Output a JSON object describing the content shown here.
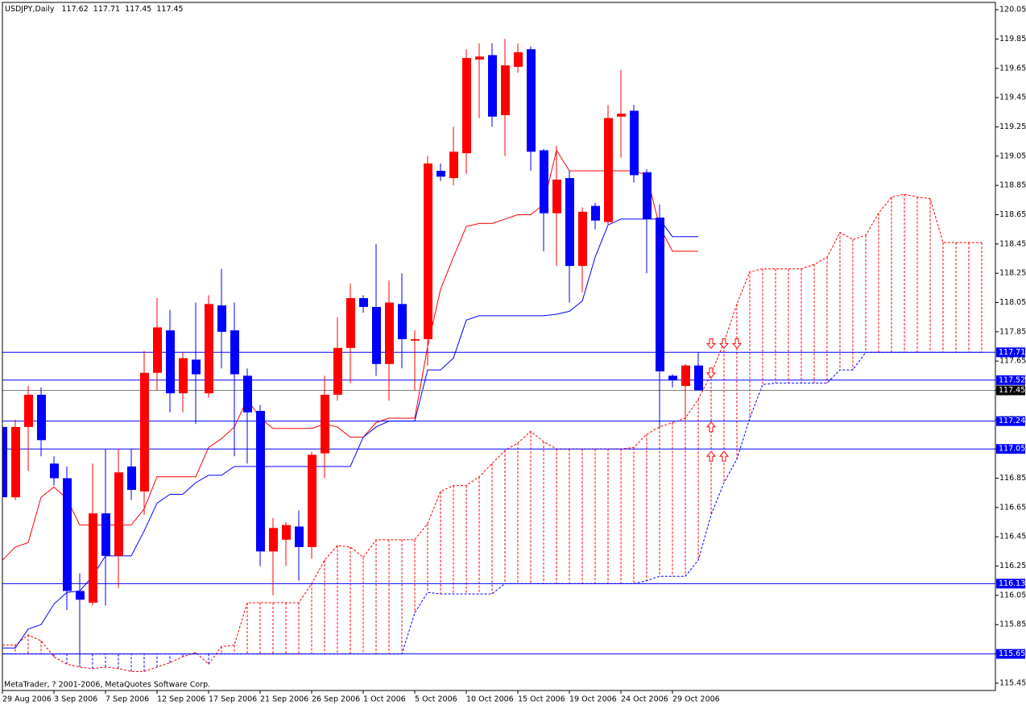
{
  "chart_data": {
    "type": "candlestick",
    "title": "USDJPY,Daily",
    "footer": "MetaTrader, ? 2001-2006, MetaQuotes Software Corp.",
    "categories": [
      "29 Aug 2006",
      null,
      null,
      null,
      "3 Sep 2006",
      null,
      null,
      null,
      "7 Sep 2006",
      null,
      null,
      null,
      "12 Sep 2006",
      null,
      null,
      null,
      "17 Sep 2006",
      null,
      null,
      null,
      "21 Sep 2006",
      null,
      null,
      null,
      "26 Sep 2006",
      null,
      null,
      null,
      "1 Oct 2006",
      null,
      null,
      null,
      "5 Oct 2006",
      null,
      null,
      null,
      "10 Oct 2006",
      null,
      null,
      null,
      "15 Oct 2006",
      null,
      null,
      null,
      "19 Oct 2006",
      null,
      null,
      null,
      "24 Oct 2006",
      null,
      null,
      null,
      "29 Oct 2006",
      null,
      null
    ],
    "open": [
      117.2,
      116.72,
      117.2,
      117.42,
      116.95,
      116.85,
      116.08,
      116.0,
      116.61,
      116.32,
      116.93,
      116.76,
      117.57,
      117.86,
      117.43,
      117.66,
      117.43,
      118.03,
      117.86,
      117.55,
      117.31,
      116.35,
      116.43,
      116.52,
      116.38,
      117.02,
      117.42,
      117.74,
      118.08,
      118.02,
      117.63,
      118.04,
      117.79,
      117.8,
      118.95,
      118.9,
      119.07,
      119.71,
      119.74,
      119.33,
      119.66,
      119.78,
      119.09,
      118.66,
      118.9,
      118.3,
      118.71,
      118.6,
      119.32,
      119.36,
      118.94,
      118.63,
      117.55,
      117.48,
      117.62
    ],
    "high": [
      117.35,
      117.25,
      117.48,
      117.47,
      117.0,
      116.93,
      116.2,
      116.95,
      117.05,
      117.05,
      117.05,
      117.72,
      118.08,
      118.0,
      117.71,
      118.05,
      118.1,
      118.28,
      118.05,
      117.6,
      117.35,
      116.58,
      116.55,
      116.63,
      117.03,
      117.55,
      117.95,
      118.18,
      118.1,
      118.45,
      118.2,
      118.25,
      117.86,
      119.05,
      119.0,
      119.25,
      119.78,
      119.82,
      119.82,
      119.85,
      119.82,
      119.8,
      119.1,
      119.12,
      118.95,
      118.7,
      118.73,
      119.4,
      119.64,
      119.4,
      118.96,
      118.72,
      117.56,
      117.63,
      117.71
    ],
    "low": [
      116.45,
      116.7,
      116.9,
      117.0,
      116.8,
      115.95,
      115.58,
      115.98,
      115.98,
      116.1,
      116.7,
      116.6,
      117.45,
      117.3,
      117.3,
      117.22,
      117.4,
      117.6,
      117.0,
      116.95,
      116.25,
      116.05,
      116.25,
      116.15,
      116.3,
      116.85,
      117.38,
      117.5,
      117.98,
      117.55,
      117.38,
      117.6,
      117.45,
      117.62,
      118.88,
      118.85,
      118.93,
      119.31,
      119.25,
      119.05,
      119.62,
      118.95,
      118.4,
      118.3,
      118.05,
      118.12,
      118.55,
      118.58,
      119.04,
      118.87,
      118.25,
      117.2,
      117.47,
      117.24,
      117.45
    ],
    "close": [
      116.72,
      117.2,
      117.42,
      117.11,
      116.85,
      116.08,
      116.02,
      116.61,
      116.32,
      116.89,
      116.77,
      117.57,
      117.88,
      117.43,
      117.67,
      117.56,
      118.04,
      117.85,
      117.56,
      117.3,
      116.35,
      116.51,
      116.53,
      116.38,
      117.01,
      117.42,
      117.74,
      118.08,
      118.02,
      117.63,
      118.05,
      117.8,
      117.8,
      119.0,
      118.91,
      119.08,
      119.72,
      119.73,
      119.32,
      119.67,
      119.76,
      119.08,
      118.66,
      118.89,
      118.3,
      118.67,
      118.61,
      119.31,
      119.34,
      118.92,
      118.62,
      117.58,
      117.52,
      117.62,
      117.45
    ],
    "up_color": "#ff0000",
    "down_color": "#0000ff",
    "tenkan": {
      "color": "#ff0000",
      "values": [
        116.29,
        116.38,
        116.41,
        116.72,
        116.79,
        116.71,
        116.53,
        116.53,
        116.53,
        116.53,
        116.53,
        116.64,
        116.86,
        116.86,
        116.86,
        116.86,
        117.06,
        117.12,
        117.2,
        117.39,
        117.26,
        117.19,
        117.19,
        117.19,
        117.19,
        117.22,
        117.2,
        117.13,
        117.13,
        117.23,
        117.26,
        117.26,
        117.26,
        117.75,
        118.14,
        118.36,
        118.57,
        118.59,
        118.59,
        118.62,
        118.65,
        118.65,
        118.72,
        119.09,
        118.95,
        118.95,
        118.95,
        118.95,
        118.95,
        118.95,
        118.92,
        118.57,
        118.4,
        118.4,
        118.4
      ]
    },
    "kijun": {
      "color": "#0000ff",
      "values": [
        115.69,
        115.69,
        115.82,
        115.85,
        115.99,
        116.07,
        116.08,
        116.18,
        116.32,
        116.32,
        116.32,
        116.49,
        116.68,
        116.74,
        116.74,
        116.82,
        116.87,
        116.87,
        116.93,
        116.93,
        116.93,
        116.93,
        116.93,
        116.93,
        116.93,
        116.93,
        116.93,
        116.93,
        117.13,
        117.2,
        117.24,
        117.24,
        117.24,
        117.59,
        117.59,
        117.67,
        117.93,
        117.96,
        117.96,
        117.96,
        117.96,
        117.96,
        117.96,
        117.97,
        117.99,
        118.06,
        118.36,
        118.58,
        118.62,
        118.62,
        118.62,
        118.62,
        118.5,
        118.5,
        118.5
      ]
    },
    "span_a": {
      "color": "#ff0000",
      "values": [
        115.71,
        115.71,
        115.78,
        115.74,
        115.63,
        115.58,
        115.56,
        115.55,
        115.56,
        115.55,
        115.53,
        115.53,
        115.56,
        115.59,
        115.63,
        115.66,
        115.58,
        115.7,
        115.71,
        116.0,
        116.0,
        116.0,
        116.0,
        116.0,
        116.13,
        116.29,
        116.39,
        116.38,
        116.31,
        116.43,
        116.43,
        116.43,
        116.43,
        116.54,
        116.76,
        116.8,
        116.8,
        116.86,
        116.95,
        117.04,
        117.09,
        117.17,
        117.1,
        117.05,
        117.05,
        117.05,
        117.05,
        117.05,
        117.05,
        117.06,
        117.15,
        117.2,
        117.23,
        117.26,
        117.39,
        117.56,
        117.78,
        118.04,
        118.26,
        118.28,
        118.28,
        118.28,
        118.28,
        118.31,
        118.36,
        118.53,
        118.48,
        118.51,
        118.66,
        118.77,
        118.79,
        118.77,
        118.76,
        118.46,
        118.46,
        118.46,
        118.46
      ]
    },
    "span_b": {
      "color": "#0000ff",
      "values": [
        115.65,
        115.65,
        115.65,
        115.65,
        115.65,
        115.65,
        115.65,
        115.65,
        115.65,
        115.65,
        115.65,
        115.65,
        115.65,
        115.65,
        115.65,
        115.65,
        115.65,
        115.65,
        115.65,
        115.65,
        115.65,
        115.65,
        115.65,
        115.65,
        115.65,
        115.65,
        115.65,
        115.65,
        115.65,
        115.65,
        115.65,
        115.65,
        115.93,
        116.07,
        116.06,
        116.06,
        116.06,
        116.06,
        116.06,
        116.13,
        116.13,
        116.13,
        116.13,
        116.13,
        116.13,
        116.13,
        116.13,
        116.13,
        116.13,
        116.13,
        116.15,
        116.18,
        116.18,
        116.18,
        116.29,
        116.6,
        116.82,
        116.98,
        117.26,
        117.49,
        117.5,
        117.5,
        117.5,
        117.5,
        117.5,
        117.59,
        117.59,
        117.71,
        117.71,
        117.71,
        117.71,
        117.71,
        117.71,
        117.71,
        117.71,
        117.71,
        117.71
      ]
    },
    "levels": [
      117.71,
      117.52,
      117.24,
      117.05,
      116.13,
      115.65
    ],
    "level_color": "#0000ff",
    "markers": [
      {
        "bar": 55,
        "price": 117.77,
        "direction": "down"
      },
      {
        "bar": 56,
        "price": 117.77,
        "direction": "down"
      },
      {
        "bar": 57,
        "price": 117.77,
        "direction": "down"
      },
      {
        "bar": 55,
        "price": 117.57,
        "direction": "down"
      },
      {
        "bar": 55,
        "price": 117.2,
        "direction": "up"
      },
      {
        "bar": 55,
        "price": 117.0,
        "direction": "up"
      },
      {
        "bar": 56,
        "price": 117.0,
        "direction": "up"
      }
    ],
    "marker_color": "#ff0000",
    "ylim": [
      115.4,
      120.1
    ],
    "yticks": [
      120.05,
      119.85,
      119.65,
      119.45,
      119.25,
      119.05,
      118.85,
      118.65,
      118.45,
      118.25,
      118.05,
      117.85,
      117.65,
      117.45,
      117.25,
      117.05,
      116.85,
      116.65,
      116.45,
      116.25,
      116.05,
      115.85,
      115.65,
      115.45
    ]
  }
}
